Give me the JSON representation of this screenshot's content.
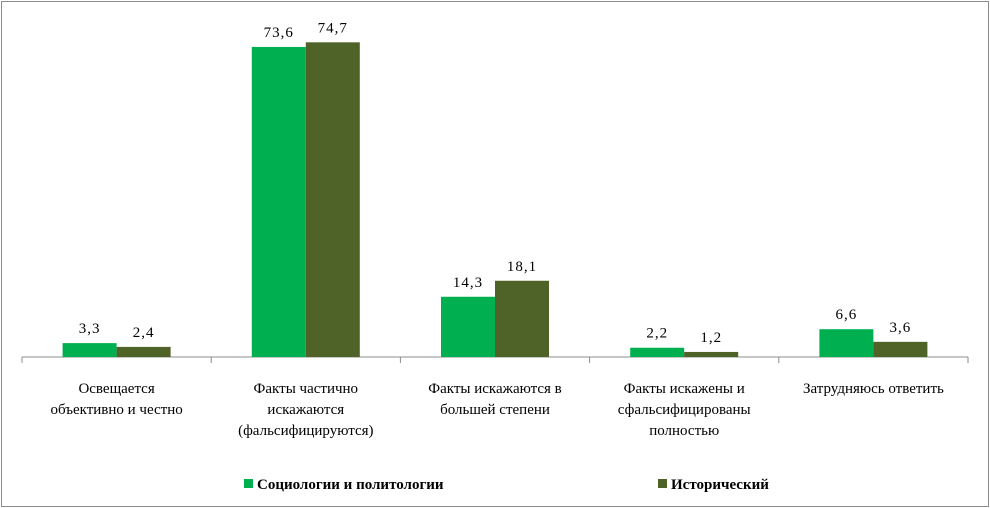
{
  "chart_data": {
    "type": "bar",
    "categories": [
      [
        "Освещается",
        "объективно и честно"
      ],
      [
        "Факты частично",
        "искажаются",
        "(фальсифицируются)"
      ],
      [
        "Факты искажаются в",
        "большей степени"
      ],
      [
        "Факты искажены и",
        "сфальсифицированы",
        "полностью"
      ],
      [
        "Затрудняюсь ответить"
      ]
    ],
    "series": [
      {
        "name": "Социологии и политологии",
        "values": [
          3.3,
          73.6,
          14.3,
          2.2,
          6.6
        ],
        "labels": [
          "3,3",
          "73,6",
          "14,3",
          "2,2",
          "6,6"
        ],
        "color": "#00b050"
      },
      {
        "name": "Исторический",
        "values": [
          2.4,
          74.7,
          18.1,
          1.2,
          3.6
        ],
        "labels": [
          "2,4",
          "74,7",
          "18,1",
          "1,2",
          "3,6"
        ],
        "color": "#4f6228"
      }
    ],
    "ylim": [
      0,
      80
    ],
    "grid": false,
    "legend": "bottom"
  }
}
